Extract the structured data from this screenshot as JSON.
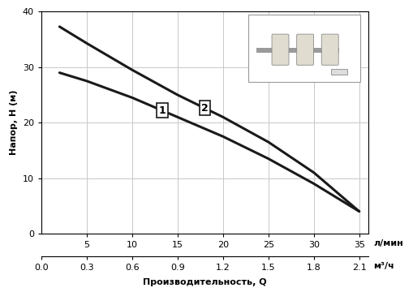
{
  "chart_data": {
    "type": "line",
    "y_label": "Напор, H (м)",
    "x_label": "Производительность, Q",
    "x_unit": "л/мин",
    "x2_unit": "м³/ч",
    "xlim": [
      0,
      36
    ],
    "xticks": [
      5,
      10,
      15,
      20,
      25,
      30,
      35
    ],
    "x2lim": [
      0,
      2.16
    ],
    "x2ticks": [
      {
        "value": 0,
        "label": "0.0"
      },
      0.3,
      0.6,
      0.9,
      1.2,
      1.5,
      1.8,
      2.1
    ],
    "ylim": [
      0,
      40
    ],
    "yticks": [
      0,
      10,
      20,
      30,
      40
    ],
    "grid": true,
    "x": [
      2,
      5,
      10,
      15,
      20,
      25,
      30,
      35
    ],
    "series": [
      {
        "name": "1",
        "color": "#1a1a1a",
        "values": [
          29,
          27.5,
          24.5,
          21,
          17.5,
          13.5,
          9,
          4
        ]
      },
      {
        "name": "2",
        "color": "#1a1a1a",
        "values": [
          37.3,
          34.3,
          29.5,
          25,
          21,
          16.5,
          11,
          4
        ]
      }
    ]
  }
}
